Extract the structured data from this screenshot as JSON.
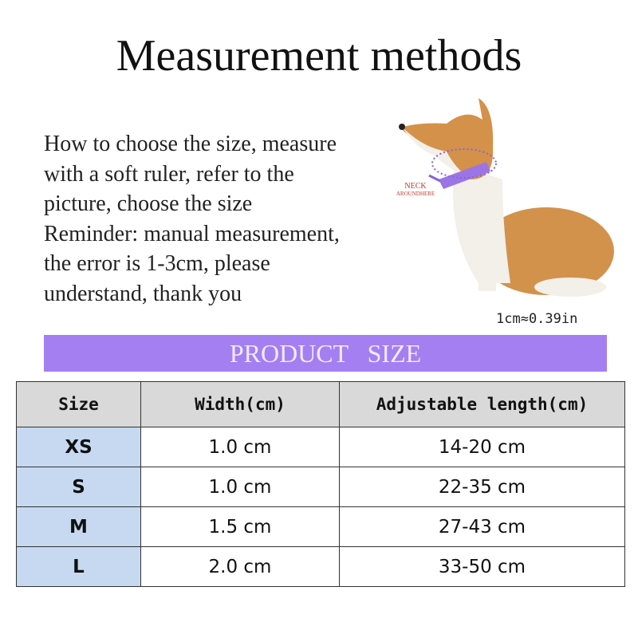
{
  "header": {
    "title": "Measurement methods"
  },
  "instructions": [
    "How to choose the size, measure",
    "with a soft ruler, refer to the",
    "picture, choose the size",
    "Reminder: manual measurement,",
    "the error is 1-3cm, please",
    "understand, thank you"
  ],
  "figure": {
    "label_lines": [
      "NECK",
      "AROUNDHERE"
    ],
    "conversion": "1cm≈0.39in"
  },
  "banner": "PRODUCT   SIZE",
  "table": {
    "header": [
      "Size",
      "Width(cm)",
      "Adjustable length(cm)"
    ],
    "rows": [
      [
        "XS",
        "1.0 cm",
        "14-20 cm"
      ],
      [
        "S",
        "1.0 cm",
        "22-35 cm"
      ],
      [
        "M",
        "1.5 cm",
        "27-43 cm"
      ],
      [
        "L",
        "2.0 cm",
        "33-50 cm"
      ]
    ]
  }
}
